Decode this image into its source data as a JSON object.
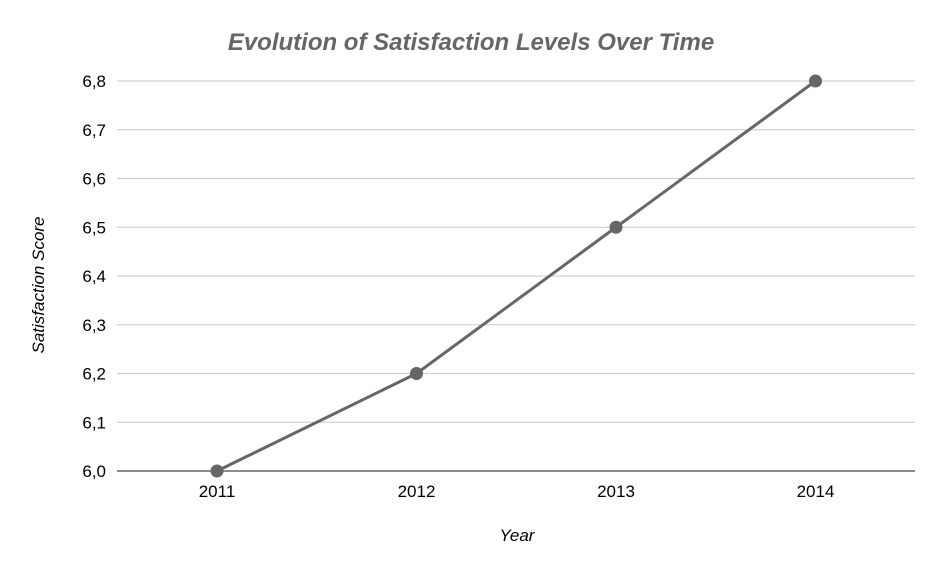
{
  "chart_data": {
    "type": "line",
    "title": "Evolution of Satisfaction Levels Over Time",
    "xlabel": "Year",
    "ylabel": "Satisfaction Score",
    "categories": [
      "2011",
      "2012",
      "2013",
      "2014"
    ],
    "series": [
      {
        "values": [
          6.0,
          6.2,
          6.5,
          6.8
        ]
      }
    ],
    "ylim": [
      6.0,
      6.8
    ],
    "y_ticks": [
      "6,0",
      "6,1",
      "6,2",
      "6,3",
      "6,4",
      "6,5",
      "6,6",
      "6,7",
      "6,8"
    ],
    "y_tick_values": [
      6.0,
      6.1,
      6.2,
      6.3,
      6.4,
      6.5,
      6.6,
      6.7,
      6.8
    ],
    "grid": true,
    "legend": "none",
    "colors": {
      "line": "#666666",
      "marker": "#666666",
      "title": "#666666",
      "grid": "#c8c8c8",
      "axis": "#666666"
    }
  }
}
